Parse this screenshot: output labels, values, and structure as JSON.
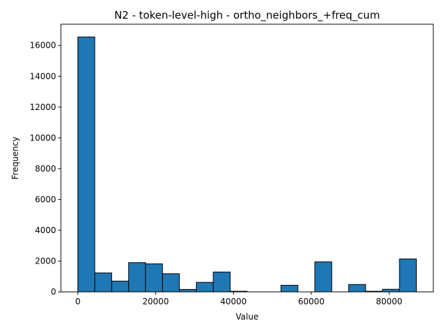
{
  "chart_data": {
    "type": "bar",
    "title": "N2 - token-level-high - ortho_neighbors_+freq_cum",
    "xlabel": "Value",
    "ylabel": "Frequency",
    "bin_edges": [
      0,
      4350,
      8700,
      13050,
      17400,
      21750,
      26100,
      30450,
      34800,
      39150,
      43500,
      47850,
      52200,
      56550,
      60900,
      65250,
      69600,
      73950,
      78300,
      82650,
      87000
    ],
    "values": [
      16550,
      1230,
      700,
      1900,
      1820,
      1180,
      160,
      620,
      1290,
      40,
      0,
      0,
      430,
      0,
      1950,
      0,
      480,
      40,
      170,
      2140
    ],
    "xlim": [
      -4350,
      91350
    ],
    "ylim": [
      0,
      17380
    ],
    "xticks": [
      0,
      20000,
      40000,
      60000,
      80000
    ],
    "xtick_labels": [
      "0",
      "20000",
      "40000",
      "60000",
      "80000"
    ],
    "yticks": [
      0,
      2000,
      4000,
      6000,
      8000,
      10000,
      12000,
      14000,
      16000
    ],
    "ytick_labels": [
      "0",
      "2000",
      "4000",
      "6000",
      "8000",
      "10000",
      "12000",
      "14000",
      "16000"
    ],
    "grid": false,
    "bar_color": "#1f77b4",
    "edge_color": "#000000"
  }
}
